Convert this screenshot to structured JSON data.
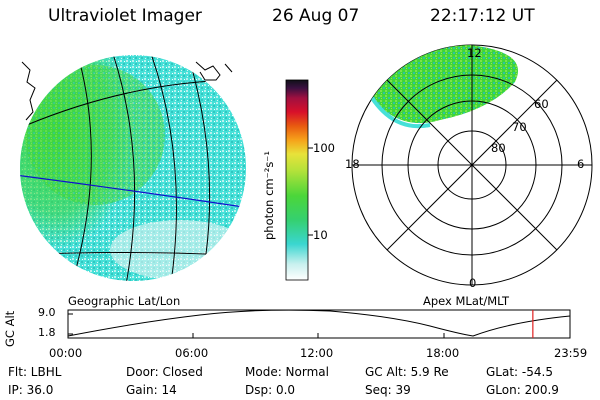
{
  "header": {
    "title": "Ultraviolet Imager",
    "date": "26 Aug 07",
    "time": "22:17:12 UT"
  },
  "colors": {
    "aurora_green": "#3fd63a",
    "aurora_cyan": "#46e0d8",
    "grid_line": "#000000",
    "geo_line": "#1010cc",
    "time_marker": "#e02020"
  },
  "geo_panel": {
    "label": "Geographic Lat/Lon"
  },
  "polar_panel": {
    "label": "Apex MLat/MLT",
    "mlt_labels": [
      "12",
      "18",
      "6",
      "0"
    ],
    "mlat_labels": [
      "60",
      "70",
      "80"
    ]
  },
  "colorbar": {
    "unit_label": "photon cm⁻²s⁻¹",
    "ticks": [
      "100",
      "10"
    ]
  },
  "altitude_plot": {
    "ylabel": "GC Alt",
    "y_ticks": [
      "9.0",
      "1.8"
    ],
    "x_ticks": [
      "00:00",
      "06:00",
      "12:00",
      "18:00",
      "23:59"
    ],
    "current_time_fraction": 0.926
  },
  "info": {
    "filter": "Flt: LBHL",
    "door": "Door: Closed",
    "mode": "Mode: Normal",
    "gc_alt": "GC Alt: 5.9 Re",
    "glat": "GLat: -54.5",
    "ip": "IP: 36.0",
    "gain": "Gain: 14",
    "dsp": "Dsp:     0.0",
    "seq": "Seq: 39",
    "glon": "GLon: 200.9"
  }
}
